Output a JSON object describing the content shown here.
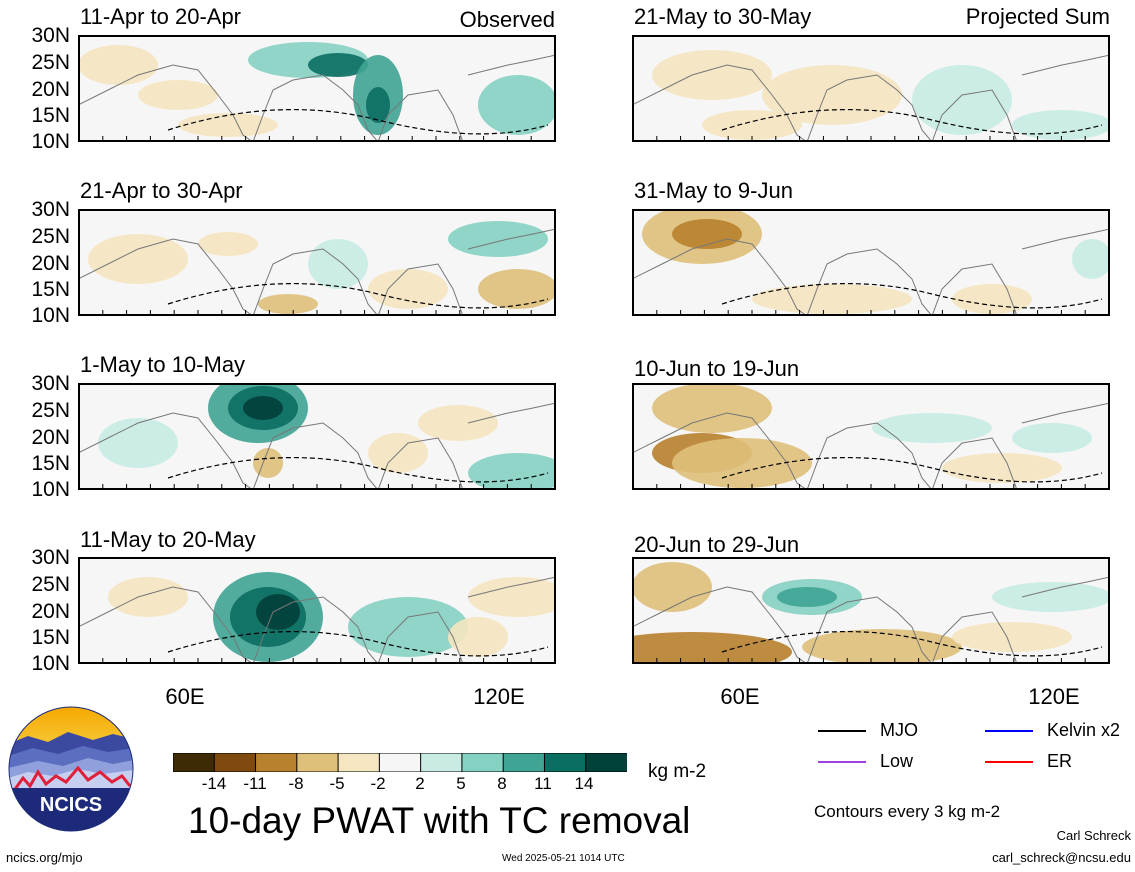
{
  "panels_left": [
    {
      "title": "11-Apr to 20-Apr",
      "tag": "Observed"
    },
    {
      "title": "21-Apr to 30-Apr",
      "tag": ""
    },
    {
      "title": "1-May to 10-May",
      "tag": ""
    },
    {
      "title": "11-May to 20-May",
      "tag": ""
    }
  ],
  "panels_right": [
    {
      "title": "21-May to 30-May",
      "tag": "Projected Sum"
    },
    {
      "title": "31-May to 9-Jun",
      "tag": ""
    },
    {
      "title": "10-Jun to 19-Jun",
      "tag": ""
    },
    {
      "title": "20-Jun to 29-Jun",
      "tag": ""
    }
  ],
  "lat_ticks": [
    "30N",
    "25N",
    "20N",
    "15N",
    "10N"
  ],
  "lon_ticks": [
    "60E",
    "120E"
  ],
  "colorbar": {
    "colors": [
      "#3f2a06",
      "#7f4a0e",
      "#b8812e",
      "#dfc07a",
      "#f5e5c0",
      "#f6f6f6",
      "#c8ece3",
      "#85d2c3",
      "#3fa494",
      "#0b6e62",
      "#02403a"
    ],
    "labels": [
      "-14",
      "-11",
      "-8",
      "-5",
      "-2",
      "2",
      "5",
      "8",
      "11",
      "14"
    ],
    "units": "kg m-2"
  },
  "legend": {
    "items": [
      {
        "label": "MJO",
        "color": "#000000"
      },
      {
        "label": "Kelvin x2",
        "color": "#0000ff"
      },
      {
        "label": "Low",
        "color": "#a040e0"
      },
      {
        "label": "ER",
        "color": "#ff0000"
      }
    ],
    "contour_note": "Contours every 3 kg m-2"
  },
  "main_title": "10-day PWAT with TC removal",
  "logo_text": "NCICS",
  "footer": {
    "url": "ncics.org/mjo",
    "timestamp": "Wed 2025-05-21 1014 UTC",
    "author": "Carl Schreck",
    "email": "carl_schreck@ncsu.edu"
  }
}
